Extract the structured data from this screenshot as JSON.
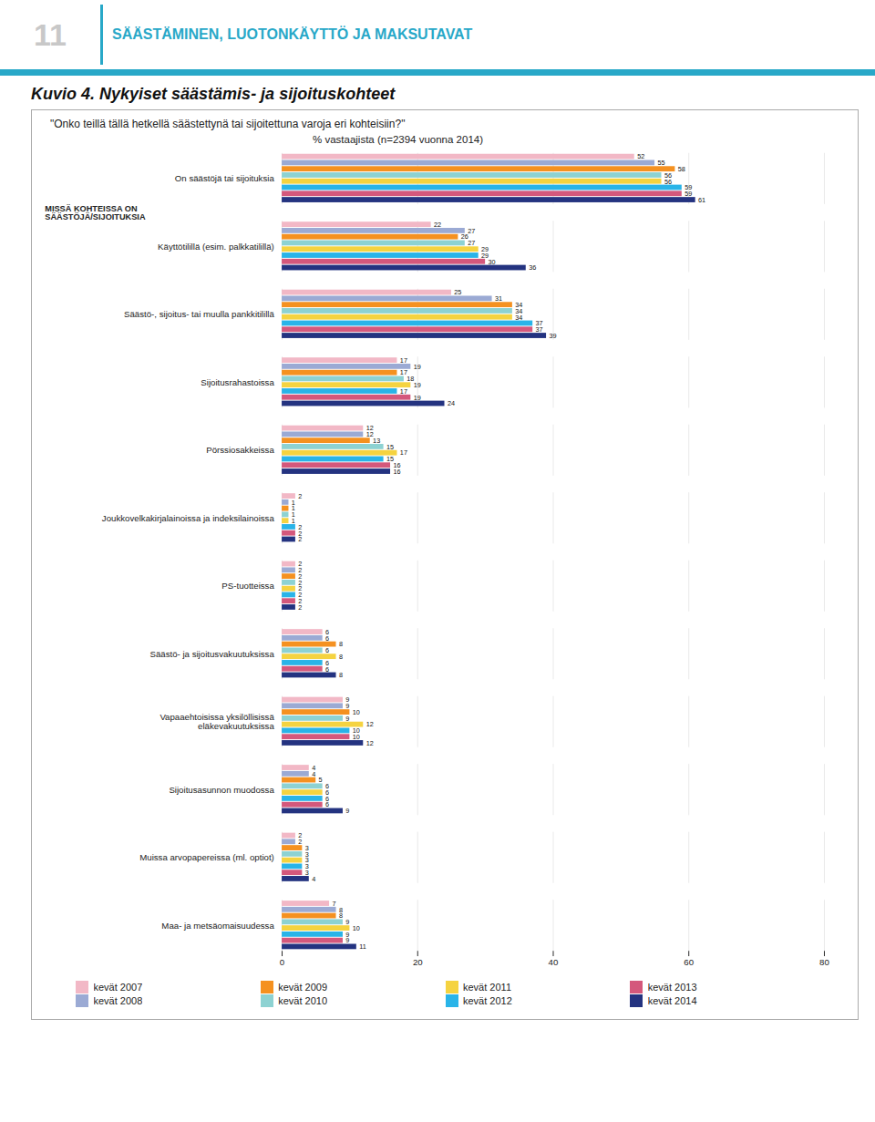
{
  "chart_data": {
    "type": "bar",
    "orientation": "horizontal",
    "title": "Kuvio 4. Nykyiset säästämis- ja sijoituskohteet",
    "subtitle": "\"Onko teillä tällä hetkellä säästettynä tai sijoitettuna varoja eri kohteisiin?\"",
    "annotations": [
      "11",
      "SÄÄSTÄMINEN, LUOTONKÄYTTÖ JA MAKSUTAVAT",
      "% vastaajista (n=2394 vuonna 2014)",
      "MISSÄ KOHTEISSA ON\nSÄÄSTÖJÄ/SIJOITUKSIA"
    ],
    "categories": [
      "On säästöjä tai sijoituksia",
      "Käyttötilillä (esim. palkkatilillä)",
      "Säästö-, sijoitus- tai muulla pankkitilillä",
      "Sijoitusrahastoissa",
      "Pörssiosakkeissa",
      "Joukkovelkakirjalainoissa ja indeksilainoissa",
      "PS-tuotteissa",
      "Säästö- ja sijoitusvakuutuksissa",
      "Vapaaehtoisissa yksilöllisissä\neläkevakuutuksissa",
      "Sijoitusasunnon muodossa",
      "Muissa arvopapereissa (ml. optiot)",
      "Maa- ja metsäomaisuudessa"
    ],
    "series": [
      {
        "name": "kevät 2007",
        "color": "#f2b8c6",
        "values": [
          52,
          22,
          25,
          17,
          12,
          2,
          2,
          6,
          9,
          4,
          2,
          7
        ]
      },
      {
        "name": "kevät 2008",
        "color": "#9baad4",
        "values": [
          55,
          27,
          31,
          19,
          12,
          1,
          2,
          6,
          9,
          4,
          2,
          8
        ]
      },
      {
        "name": "kevät 2009",
        "color": "#f59120",
        "values": [
          58,
          26,
          34,
          17,
          13,
          1,
          2,
          8,
          10,
          5,
          3,
          8
        ]
      },
      {
        "name": "kevät 2010",
        "color": "#8dd2d2",
        "values": [
          56,
          27,
          34,
          18,
          15,
          1,
          2,
          6,
          9,
          6,
          3,
          9
        ]
      },
      {
        "name": "kevät 2011",
        "color": "#f5d340",
        "values": [
          56,
          29,
          34,
          19,
          17,
          1,
          2,
          8,
          12,
          6,
          3,
          10
        ]
      },
      {
        "name": "kevät 2012",
        "color": "#29b4e8",
        "values": [
          59,
          29,
          37,
          17,
          15,
          2,
          2,
          6,
          10,
          6,
          3,
          9
        ]
      },
      {
        "name": "kevät 2013",
        "color": "#d4587c",
        "values": [
          59,
          30,
          37,
          19,
          16,
          2,
          2,
          6,
          10,
          6,
          3,
          9
        ]
      },
      {
        "name": "kevät 2014",
        "color": "#243380",
        "values": [
          61,
          36,
          39,
          24,
          16,
          2,
          2,
          8,
          12,
          9,
          4,
          11
        ]
      }
    ],
    "xlim": [
      0,
      80
    ],
    "xticks": [
      0,
      20,
      40,
      60,
      80
    ],
    "grid": true,
    "data_labels": true,
    "legend": "bottom"
  }
}
